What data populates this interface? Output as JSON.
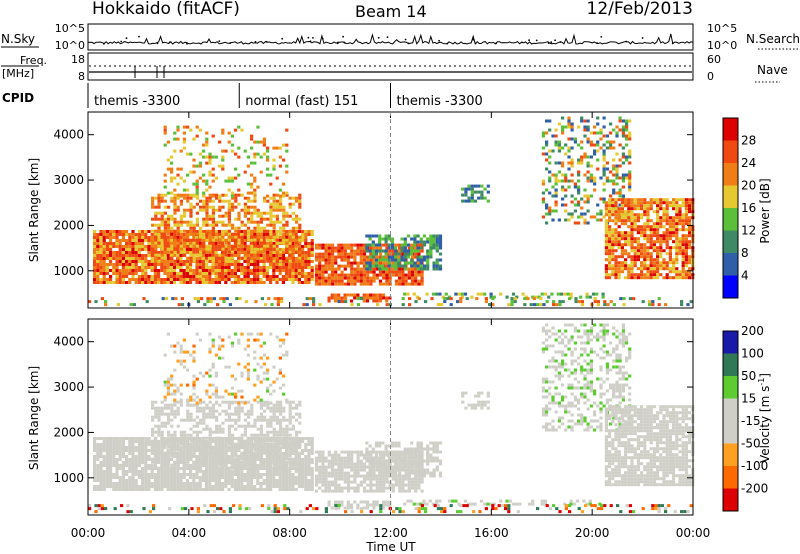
{
  "header": {
    "site": "Hokkaido (fitACF)",
    "beam": "Beam 14",
    "date": "12/Feb/2013"
  },
  "noise_panel": {
    "left_label": "N.Sky",
    "right_label": "N.Search",
    "left_ticks": [
      "10^5",
      "10^0"
    ],
    "right_ticks": [
      "10^5",
      "10^0"
    ]
  },
  "freq_panel": {
    "left_label_1": "Freq.",
    "left_label_2": "[MHz]",
    "right_label": "Nave",
    "left_ticks": [
      "18",
      "8"
    ],
    "right_ticks": [
      "60",
      "0"
    ]
  },
  "cpid": {
    "label": "CPID",
    "segments": [
      {
        "start_hour": 0,
        "end_hour": 6,
        "label": "themis -3300"
      },
      {
        "start_hour": 6,
        "end_hour": 12,
        "label": "normal (fast) 151"
      },
      {
        "start_hour": 12,
        "end_hour": 24,
        "label": "themis -3300"
      }
    ]
  },
  "colors": {
    "power": [
      "#0000ff",
      "#2f5fa8",
      "#3d8a64",
      "#5cbf3a",
      "#e6c830",
      "#f07d16",
      "#f04a12",
      "#dc0000"
    ],
    "velocity": [
      "#dc0000",
      "#ff6a00",
      "#ffa020",
      "#cfcfc8",
      "#cfcfc8",
      "#5ccc30",
      "#2f7a55",
      "#1a1aa8"
    ],
    "ground": "#bfbfbf"
  },
  "chart_data": [
    {
      "type": "heatmap",
      "name": "Power",
      "xlabel": "",
      "ylabel": "Slant Range [km]",
      "xlim": [
        0,
        24
      ],
      "ylim": [
        180,
        4500
      ],
      "yticks": [
        "1000",
        "2000",
        "3000",
        "4000"
      ],
      "colorbar": {
        "label": "Power [dB]",
        "ticks": [
          "4",
          "8",
          "12",
          "16",
          "20",
          "24",
          "28"
        ]
      }
    },
    {
      "type": "heatmap",
      "name": "Velocity",
      "xlabel": "Time UT",
      "ylabel": "Slant Range [km]",
      "xlim": [
        0,
        24
      ],
      "ylim": [
        180,
        4500
      ],
      "xticks": [
        "00:00",
        "04:00",
        "08:00",
        "12:00",
        "16:00",
        "20:00",
        "00:00"
      ],
      "yticks": [
        "1000",
        "2000",
        "3000",
        "4000"
      ],
      "colorbar": {
        "label_main": "Velocity [m s",
        "label_sup": "-1",
        "label_end": "]",
        "ticks": [
          "200",
          "100",
          "50",
          "15",
          "-15",
          "-50",
          "-100",
          "-200"
        ]
      }
    }
  ],
  "scatter_regions": [
    {
      "t0": 0.2,
      "t1": 9.0,
      "r0": 700,
      "r1": 1900,
      "density": 0.9,
      "pow": [
        18,
        30
      ],
      "vel": [
        -14,
        14
      ]
    },
    {
      "t0": 2.5,
      "t1": 8.5,
      "r0": 1200,
      "r1": 2700,
      "density": 0.55,
      "pow": [
        16,
        28
      ],
      "vel": [
        -14,
        14
      ]
    },
    {
      "t0": 3.0,
      "t1": 8.0,
      "r0": 2600,
      "r1": 4200,
      "density": 0.2,
      "pow": [
        12,
        26
      ],
      "vel": [
        -60,
        60
      ]
    },
    {
      "t0": 9.0,
      "t1": 13.3,
      "r0": 700,
      "r1": 1600,
      "density": 0.85,
      "pow": [
        20,
        30
      ],
      "vel": [
        -14,
        14
      ]
    },
    {
      "t0": 11.0,
      "t1": 14.0,
      "r0": 1000,
      "r1": 1800,
      "density": 0.6,
      "pow": [
        4,
        16
      ],
      "vel": [
        -14,
        14
      ]
    },
    {
      "t0": 9.5,
      "t1": 12.0,
      "r0": 300,
      "r1": 500,
      "density": 0.7,
      "pow": [
        20,
        30
      ],
      "vel": [
        -14,
        14
      ]
    },
    {
      "t0": 12.5,
      "t1": 20.5,
      "r0": 380,
      "r1": 520,
      "density": 0.4,
      "pow": [
        6,
        20
      ],
      "vel": [
        20,
        60
      ]
    },
    {
      "t0": 14.8,
      "t1": 16.0,
      "r0": 2500,
      "r1": 2900,
      "density": 0.5,
      "pow": [
        4,
        16
      ],
      "vel": [
        -14,
        14
      ]
    },
    {
      "t0": 18.0,
      "t1": 21.5,
      "r0": 2000,
      "r1": 4400,
      "density": 0.35,
      "pow": [
        4,
        28
      ],
      "vel": [
        15,
        60
      ]
    },
    {
      "t0": 20.5,
      "t1": 24.0,
      "r0": 800,
      "r1": 2600,
      "density": 0.8,
      "pow": [
        16,
        30
      ],
      "vel": [
        -14,
        14
      ]
    },
    {
      "t0": 0.0,
      "t1": 24.0,
      "r0": 200,
      "r1": 420,
      "density": 0.25,
      "pow": [
        4,
        28
      ],
      "vel": [
        -200,
        200
      ]
    }
  ]
}
